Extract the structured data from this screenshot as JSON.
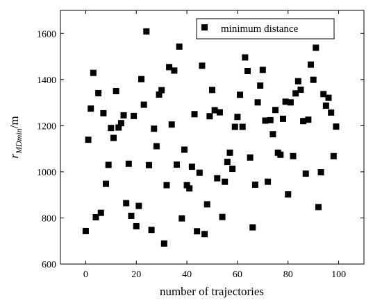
{
  "chart_data": {
    "type": "scatter",
    "title": "",
    "xlabel": "number of trajectories",
    "ylabel": {
      "base": "r",
      "subscript": "MDmin",
      "unit": "/m"
    },
    "xlim": [
      -10,
      110
    ],
    "ylim": [
      600,
      1700
    ],
    "xticks": [
      0,
      20,
      40,
      60,
      80,
      100
    ],
    "xtick_labels": [
      "0",
      "20",
      "40",
      "60",
      "80",
      "100"
    ],
    "yticks": [
      600,
      800,
      1000,
      1200,
      1400,
      1600
    ],
    "ytick_labels": [
      "600",
      "800",
      "1000",
      "1200",
      "1400",
      "1600"
    ],
    "grid": false,
    "legend_position": "top-right",
    "marker": "square",
    "series": [
      {
        "name": "minimum distance",
        "color": "#000000",
        "points": [
          [
            0,
            743
          ],
          [
            1,
            1139
          ],
          [
            2,
            1274
          ],
          [
            3,
            1429
          ],
          [
            4,
            803
          ],
          [
            5,
            1341
          ],
          [
            6,
            822
          ],
          [
            7,
            1254
          ],
          [
            8,
            948
          ],
          [
            9,
            1030
          ],
          [
            10,
            1190
          ],
          [
            11,
            1147
          ],
          [
            12,
            1350
          ],
          [
            13,
            1192
          ],
          [
            14,
            1211
          ],
          [
            15,
            1245
          ],
          [
            16,
            864
          ],
          [
            17,
            1035
          ],
          [
            18,
            809
          ],
          [
            19,
            1242
          ],
          [
            20,
            764
          ],
          [
            21,
            852
          ],
          [
            22,
            1402
          ],
          [
            23,
            1291
          ],
          [
            24,
            1609
          ],
          [
            25,
            1029
          ],
          [
            26,
            748
          ],
          [
            27,
            1187
          ],
          [
            28,
            1111
          ],
          [
            29,
            1335
          ],
          [
            30,
            1354
          ],
          [
            31,
            689
          ],
          [
            32,
            942
          ],
          [
            33,
            1454
          ],
          [
            34,
            1205
          ],
          [
            35,
            1439
          ],
          [
            36,
            1031
          ],
          [
            37,
            1543
          ],
          [
            38,
            798
          ],
          [
            39,
            1096
          ],
          [
            40,
            942
          ],
          [
            41,
            928
          ],
          [
            42,
            1022
          ],
          [
            43,
            1250
          ],
          [
            44,
            742
          ],
          [
            45,
            996
          ],
          [
            46,
            1460
          ],
          [
            47,
            730
          ],
          [
            48,
            859
          ],
          [
            49,
            1241
          ],
          [
            50,
            1355
          ],
          [
            51,
            1267
          ],
          [
            52,
            972
          ],
          [
            53,
            1258
          ],
          [
            54,
            804
          ],
          [
            55,
            957
          ],
          [
            56,
            1043
          ],
          [
            57,
            1083
          ],
          [
            58,
            1013
          ],
          [
            59,
            1195
          ],
          [
            60,
            1238
          ],
          [
            61,
            1334
          ],
          [
            62,
            1195
          ],
          [
            63,
            1496
          ],
          [
            64,
            1437
          ],
          [
            65,
            1062
          ],
          [
            66,
            759
          ],
          [
            67,
            944
          ],
          [
            68,
            1301
          ],
          [
            69,
            1374
          ],
          [
            70,
            1442
          ],
          [
            71,
            1222
          ],
          [
            72,
            957
          ],
          [
            73,
            1224
          ],
          [
            74,
            1163
          ],
          [
            75,
            1268
          ],
          [
            76,
            1083
          ],
          [
            77,
            1074
          ],
          [
            78,
            1230
          ],
          [
            79,
            1304
          ],
          [
            80,
            902
          ],
          [
            81,
            1301
          ],
          [
            82,
            1068
          ],
          [
            83,
            1340
          ],
          [
            84,
            1393
          ],
          [
            85,
            1356
          ],
          [
            86,
            1220
          ],
          [
            87,
            992
          ],
          [
            88,
            1226
          ],
          [
            89,
            1465
          ],
          [
            90,
            1399
          ],
          [
            91,
            1538
          ],
          [
            92,
            847
          ],
          [
            93,
            998
          ],
          [
            94,
            1337
          ],
          [
            95,
            1287
          ],
          [
            96,
            1321
          ],
          [
            97,
            1257
          ],
          [
            98,
            1068
          ],
          [
            99,
            1196
          ]
        ]
      }
    ]
  }
}
